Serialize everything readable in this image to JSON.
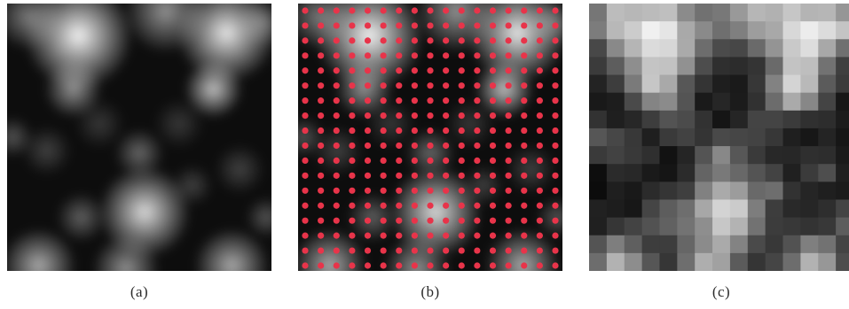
{
  "captions": {
    "a": "(a)",
    "b": "(b)",
    "c": "(c)"
  },
  "colors": {
    "sample_dot": "#e8344a",
    "background": "#ffffff"
  },
  "sampling_grid": {
    "rows": 18,
    "cols": 17
  },
  "pixel_grid": {
    "rows": 15,
    "cols": 15
  },
  "blobs": [
    {
      "u": 0.27,
      "v": 0.12,
      "r": 0.13,
      "a": 0.95
    },
    {
      "u": 0.83,
      "v": 0.11,
      "r": 0.12,
      "a": 0.9
    },
    {
      "u": 0.6,
      "v": 0.03,
      "r": 0.1,
      "a": 0.55
    },
    {
      "u": 0.08,
      "v": 0.05,
      "r": 0.08,
      "a": 0.45
    },
    {
      "u": 0.97,
      "v": 0.07,
      "r": 0.06,
      "a": 0.35
    },
    {
      "u": 0.25,
      "v": 0.32,
      "r": 0.07,
      "a": 0.55
    },
    {
      "u": 0.78,
      "v": 0.32,
      "r": 0.07,
      "a": 0.75
    },
    {
      "u": 0.5,
      "v": 0.56,
      "r": 0.06,
      "a": 0.38
    },
    {
      "u": 0.52,
      "v": 0.78,
      "r": 0.11,
      "a": 0.85
    },
    {
      "u": 0.28,
      "v": 0.8,
      "r": 0.06,
      "a": 0.35
    },
    {
      "u": 0.15,
      "v": 0.55,
      "r": 0.06,
      "a": 0.22
    },
    {
      "u": 0.88,
      "v": 0.62,
      "r": 0.06,
      "a": 0.22
    },
    {
      "u": 0.7,
      "v": 0.68,
      "r": 0.05,
      "a": 0.22
    },
    {
      "u": 0.35,
      "v": 0.45,
      "r": 0.06,
      "a": 0.18
    },
    {
      "u": 0.65,
      "v": 0.45,
      "r": 0.06,
      "a": 0.18
    },
    {
      "u": 0.12,
      "v": 0.98,
      "r": 0.09,
      "a": 0.65
    },
    {
      "u": 0.45,
      "v": 0.99,
      "r": 0.08,
      "a": 0.55
    },
    {
      "u": 0.85,
      "v": 0.98,
      "r": 0.09,
      "a": 0.65
    },
    {
      "u": 0.02,
      "v": 0.5,
      "r": 0.05,
      "a": 0.3
    },
    {
      "u": 0.98,
      "v": 0.8,
      "r": 0.05,
      "a": 0.3
    }
  ]
}
